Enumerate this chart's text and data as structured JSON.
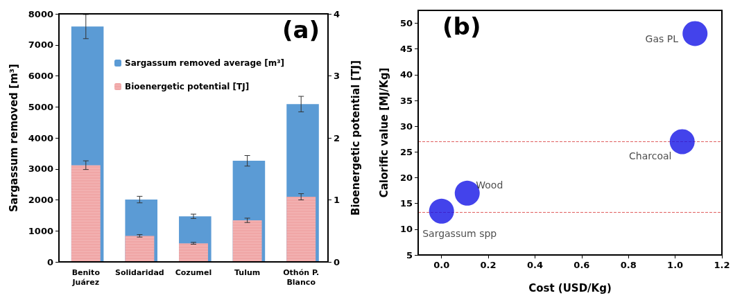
{
  "chart_data": [
    {
      "type": "bar",
      "categories": [
        "Benito\nJuárez",
        "Solidaridad",
        "Cozumel",
        "Tulum",
        "Othón P.\nBlanco"
      ],
      "ylabel": "Sargassum removed [m³]",
      "y2label": "Bioenergetic potential [TJ]",
      "ylim": [
        0,
        8000
      ],
      "yticks": [
        0,
        1000,
        2000,
        3000,
        4000,
        5000,
        6000,
        7000,
        8000
      ],
      "y2lim": [
        0,
        4
      ],
      "y2ticks": [
        0,
        1,
        2,
        3,
        4
      ],
      "grid": false,
      "legend": "top",
      "annotations": [
        "(a)"
      ],
      "series": [
        {
          "name": "Sargassum removed average [m³]",
          "color": "#5b9bd5",
          "values": [
            7590,
            2010,
            1470,
            3260,
            5090
          ],
          "errors": [
            390,
            105,
            70,
            170,
            250
          ]
        },
        {
          "name": "Bioenergetic potential [TJ]",
          "color": "#f2b0b0",
          "axis": "y2",
          "values": [
            1.56,
            0.42,
            0.3,
            0.67,
            1.05
          ],
          "errors": [
            0.07,
            0.02,
            0.015,
            0.035,
            0.05
          ]
        }
      ]
    },
    {
      "type": "scatter",
      "xlabel": "Cost (USD/Kg)",
      "ylabel": "Calorific value [MJ/Kg]",
      "xlim": [
        -0.1,
        1.2
      ],
      "xticks": [
        {
          "value": 0,
          "label": "0.0"
        },
        0.2,
        0.4,
        0.6,
        0.8,
        {
          "value": 1,
          "label": "1.0"
        },
        1.2
      ],
      "ylim": [
        5,
        52.5
      ],
      "yticks": [
        5,
        10,
        15,
        20,
        25,
        30,
        35,
        40,
        45,
        50
      ],
      "grid": false,
      "marker": "circle",
      "series": [
        {
          "color": "#1414e6",
          "x": [
            0,
            0.11,
            1.03,
            1.085
          ],
          "values": [
            13.5,
            17,
            27,
            48
          ]
        }
      ],
      "ref_lines": [
        {
          "axis": "y",
          "value": 27,
          "color": "#e06060",
          "line_style": "dashed"
        },
        {
          "axis": "y",
          "value": 13.3,
          "color": "#e06060",
          "line_style": "dashed"
        }
      ],
      "annotations": [
        "(b)",
        {
          "text": "Sargassum spp",
          "x": 0,
          "y": 13.5
        },
        {
          "text": "Wood",
          "x": 0.11,
          "y": 17
        },
        {
          "text": "Charcoal",
          "x": 1.03,
          "y": 27
        },
        {
          "text": "Gas PL",
          "x": 1.085,
          "y": 48
        }
      ]
    }
  ]
}
